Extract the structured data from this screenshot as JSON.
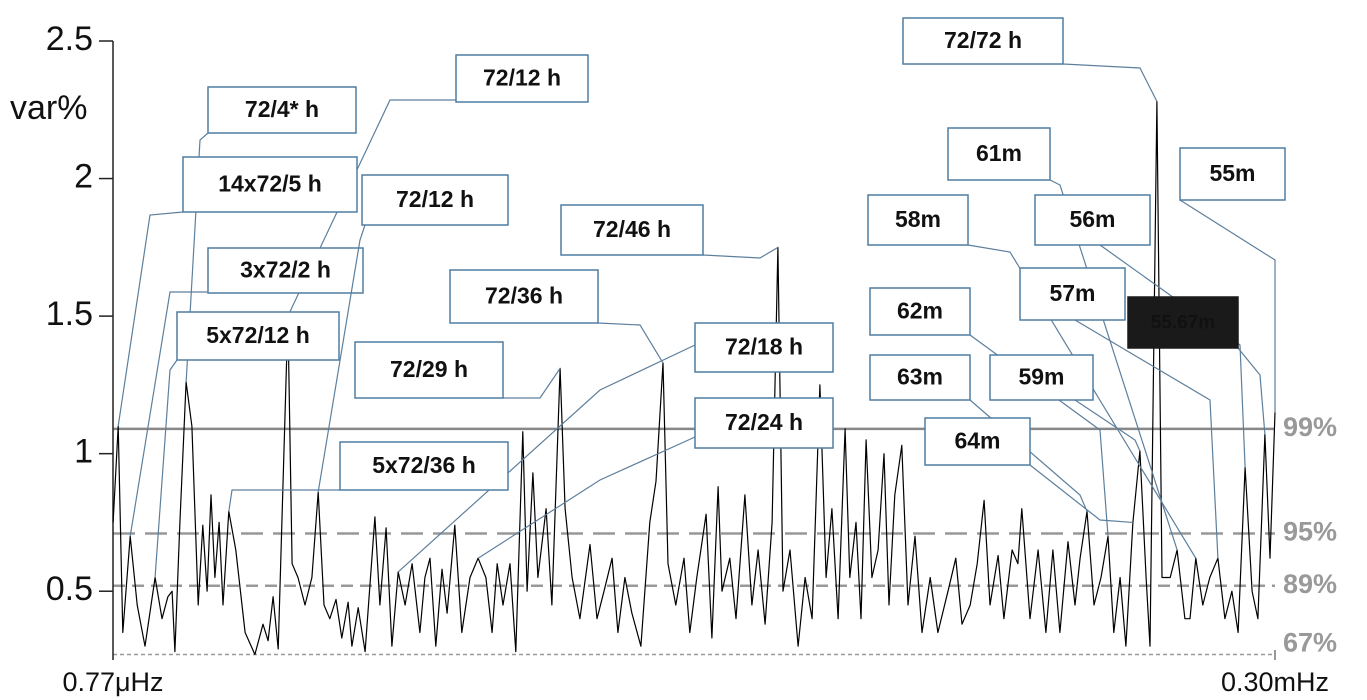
{
  "chart_data": {
    "type": "line",
    "y_label": "var%",
    "color": "#000000",
    "xlim": [
      0.77,
      300
    ],
    "xticks": [
      {
        "value": 0.77,
        "label": "0.77μHz"
      },
      {
        "value": 300,
        "label": "0.30mHz"
      }
    ],
    "ylim": [
      0.25,
      2.5
    ],
    "yticks": [
      0.5,
      1.0,
      1.5,
      2.0,
      2.5
    ],
    "x": [
      0.8,
      2.1,
      3.3,
      5.2,
      7.0,
      9.0,
      11.6,
      13.4,
      14.9,
      16.0,
      16.7,
      18.0,
      19.6,
      21.1,
      22.7,
      23.9,
      25.0,
      26.0,
      27.0,
      28.1,
      29.1,
      30.6,
      32.4,
      34.8,
      37.3,
      39.4,
      40.7,
      42.0,
      43.3,
      45.8,
      46.9,
      48.4,
      50.2,
      52.0,
      53.6,
      55.1,
      56.6,
      58.2,
      59.7,
      61.3,
      62.3,
      63.9,
      65.7,
      68.2,
      69.5,
      71.1,
      72.6,
      74.2,
      76.0,
      77.8,
      79.8,
      81.1,
      82.4,
      83.9,
      85.5,
      86.8,
      88.8,
      90.6,
      92.7,
      94.8,
      96.8,
      98.4,
      99.7,
      101.2,
      103.0,
      104.5,
      106.3,
      107.4,
      108.9,
      110.2,
      112.3,
      113.8,
      115.9,
      117.2,
      119.0,
      121.0,
      123.6,
      125.4,
      127.2,
      129.3,
      130.8,
      132.6,
      134.4,
      136.7,
      139.0,
      140.6,
      142.4,
      143.7,
      145.7,
      147.8,
      149.3,
      151.1,
      153.5,
      155.0,
      156.6,
      157.6,
      159.6,
      161.2,
      163.5,
      165.3,
      166.9,
      168.7,
      170.5,
      172.0,
      173.3,
      175.1,
      177.2,
      179.0,
      180.8,
      182.8,
      184.4,
      185.9,
      187.5,
      189.3,
      190.5,
      192.1,
      193.4,
      194.7,
      196.2,
      197.8,
      199.3,
      200.6,
      202.1,
      203.9,
      205.5,
      207.3,
      209.1,
      211.2,
      213.2,
      215.8,
      217.8,
      219.4,
      221.5,
      223.3,
      225.1,
      226.6,
      228.7,
      230.2,
      232.3,
      233.8,
      234.8,
      236.9,
      239.0,
      241.0,
      242.8,
      244.6,
      246.7,
      248.5,
      249.8,
      251.6,
      253.4,
      255.2,
      257.0,
      258.5,
      260.1,
      261.6,
      263.4,
      265.2,
      266.8,
      267.8,
      269.6,
      270.9,
      273.0,
      274.8,
      276.8,
      278.1,
      279.6,
      281.4,
      283.2,
      285.3,
      287.1,
      288.9,
      290.5,
      292.3,
      294.1,
      295.6,
      297.4,
      298.7,
      300.0
    ],
    "values": [
      0.75,
      1.1,
      0.35,
      0.7,
      0.45,
      0.3,
      0.55,
      0.4,
      0.48,
      0.5,
      0.28,
      0.75,
      1.26,
      1.1,
      0.45,
      0.74,
      0.5,
      0.85,
      0.55,
      0.75,
      0.45,
      0.79,
      0.65,
      0.35,
      0.27,
      0.38,
      0.32,
      0.48,
      0.29,
      1.5,
      0.6,
      0.55,
      0.45,
      0.55,
      0.86,
      0.45,
      0.4,
      0.47,
      0.33,
      0.46,
      0.3,
      0.44,
      0.28,
      0.77,
      0.45,
      0.73,
      0.3,
      0.57,
      0.45,
      0.6,
      0.35,
      0.55,
      0.62,
      0.3,
      0.58,
      0.42,
      0.74,
      0.35,
      0.55,
      0.62,
      0.55,
      0.35,
      0.6,
      0.45,
      0.6,
      0.28,
      1.08,
      0.5,
      0.93,
      0.55,
      0.8,
      0.45,
      1.31,
      0.8,
      0.55,
      0.4,
      0.67,
      0.4,
      0.5,
      0.62,
      0.35,
      0.55,
      0.42,
      0.3,
      0.75,
      0.9,
      1.33,
      0.6,
      0.45,
      0.62,
      0.35,
      0.55,
      0.78,
      0.33,
      0.88,
      0.5,
      0.62,
      0.4,
      0.85,
      0.45,
      0.65,
      0.38,
      0.75,
      1.75,
      0.5,
      0.65,
      0.3,
      0.55,
      0.4,
      1.25,
      0.55,
      0.8,
      0.4,
      1.09,
      0.55,
      0.75,
      0.4,
      1.05,
      0.55,
      0.65,
      1.0,
      0.45,
      0.85,
      1.03,
      0.45,
      0.7,
      0.35,
      0.55,
      0.35,
      0.5,
      0.62,
      0.38,
      0.45,
      0.6,
      0.83,
      0.45,
      0.63,
      0.4,
      0.65,
      0.6,
      0.8,
      0.4,
      0.65,
      0.35,
      0.65,
      0.35,
      0.68,
      0.45,
      0.62,
      0.79,
      0.45,
      0.55,
      0.7,
      0.35,
      0.55,
      0.3,
      0.75,
      1.01,
      0.55,
      0.3,
      2.28,
      0.55,
      0.55,
      0.65,
      0.4,
      0.4,
      0.62,
      0.45,
      0.55,
      0.62,
      0.4,
      0.5,
      0.35,
      0.95,
      0.5,
      0.4,
      1.07,
      0.62,
      1.15
    ],
    "reference_lines": [
      {
        "value": 1.09,
        "label": "99%",
        "style": "solid"
      },
      {
        "value": 0.71,
        "label": "95%",
        "style": "long-dash"
      },
      {
        "value": 0.52,
        "label": "89%",
        "style": "dash"
      },
      {
        "value": 0.27,
        "label": "67%",
        "style": "dot"
      }
    ],
    "annotations": [
      {
        "label": "72/72 h",
        "x": 269.6,
        "y": 2.28
      },
      {
        "label": "72/12 h",
        "x": 45.8,
        "y": 1.5
      },
      {
        "label": "72/4* h",
        "x": 19.6,
        "y": 1.26
      },
      {
        "label": "14x72/5 h",
        "x": 2.1,
        "y": 1.1
      },
      {
        "label": "3x72/2 h",
        "x": 5.2,
        "y": 0.7
      },
      {
        "label": "5x72/12 h",
        "x": 11.6,
        "y": 0.55
      },
      {
        "label": "72/12 h",
        "x": 53.6,
        "y": 0.86
      },
      {
        "label": "72/29 h",
        "x": 115.9,
        "y": 1.31
      },
      {
        "label": "72/36 h",
        "x": 142.4,
        "y": 1.33
      },
      {
        "label": "72/46 h",
        "x": 172.0,
        "y": 1.75
      },
      {
        "label": "72/18 h",
        "x": 74.2,
        "y": 0.57
      },
      {
        "label": "72/24 h",
        "x": 94.8,
        "y": 0.62
      },
      {
        "label": "5x72/36 h",
        "x": 30.6,
        "y": 0.79
      },
      {
        "label": "61m",
        "x": 274.8,
        "y": 0.65
      },
      {
        "label": "55m",
        "x": 300.0,
        "y": 1.15
      },
      {
        "label": "58m",
        "x": 279.6,
        "y": 0.62
      },
      {
        "label": "56m",
        "x": 292.3,
        "y": 0.95
      },
      {
        "label": "57m",
        "x": 285.3,
        "y": 0.62
      },
      {
        "label": "55.67m",
        "x": 297.4,
        "y": 1.07,
        "highlight": true
      },
      {
        "label": "62m",
        "x": 257.0,
        "y": 0.7
      },
      {
        "label": "63m",
        "x": 251.6,
        "y": 0.79
      },
      {
        "label": "59m",
        "x": 265.2,
        "y": 1.01
      },
      {
        "label": "64m",
        "x": 263.4,
        "y": 0.75
      }
    ]
  }
}
